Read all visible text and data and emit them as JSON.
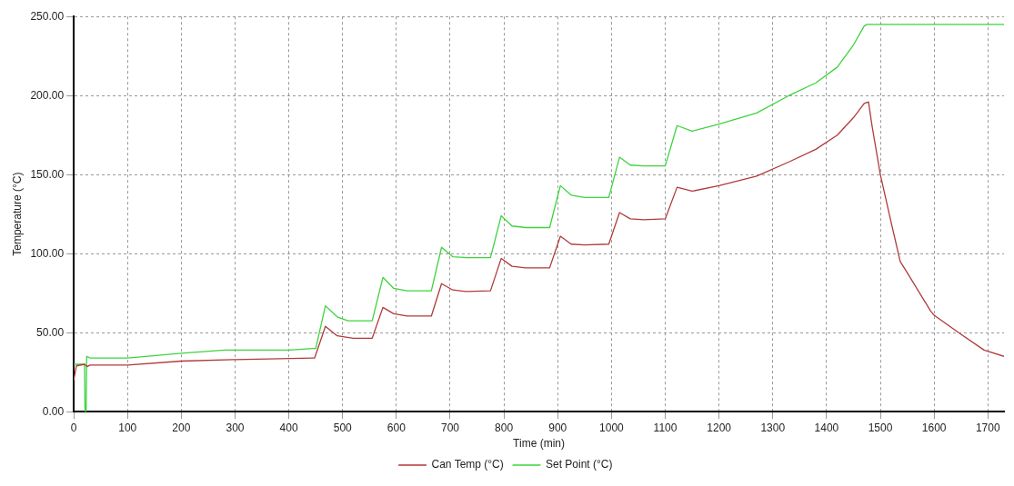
{
  "chart_data": {
    "type": "line",
    "xlabel": "Time (min)",
    "ylabel": "Temperature (°C)",
    "xlim": [
      0,
      1730
    ],
    "xticks": [
      0,
      100,
      200,
      300,
      400,
      500,
      600,
      700,
      800,
      900,
      1000,
      1100,
      1200,
      1300,
      1400,
      1500,
      1600,
      1700
    ],
    "ylim": [
      0,
      250
    ],
    "yticks": [
      {
        "value": 0,
        "label": "0.00"
      },
      {
        "value": 50,
        "label": "50.00"
      },
      {
        "value": 100,
        "label": "100.00"
      },
      {
        "value": 150,
        "label": "150.00"
      },
      {
        "value": 200,
        "label": "200.00"
      },
      {
        "value": 250,
        "label": "250.00"
      }
    ],
    "grid": true,
    "legend": "bottom",
    "marker": "none",
    "line_style": "solid",
    "series": [
      {
        "name": "Can Temp (°C)",
        "color": "#b03a3a",
        "x": [
          0,
          5,
          20,
          25,
          30,
          100,
          200,
          300,
          445,
          448,
          468,
          490,
          520,
          555,
          575,
          595,
          620,
          665,
          684,
          705,
          730,
          775,
          795,
          815,
          840,
          885,
          905,
          925,
          950,
          995,
          1015,
          1035,
          1060,
          1100,
          1122,
          1150,
          1200,
          1270,
          1330,
          1380,
          1420,
          1450,
          1470,
          1478,
          1485,
          1500,
          1520,
          1537,
          1550,
          1593,
          1600,
          1650,
          1693,
          1730
        ],
        "values": [
          20,
          29,
          30,
          28.5,
          29.5,
          29.5,
          32,
          33,
          34,
          34,
          54,
          48,
          46.5,
          46.5,
          66,
          62,
          60.5,
          60.5,
          81,
          77,
          76,
          76.5,
          97,
          92,
          91,
          91,
          111,
          106,
          105.5,
          106,
          126,
          122,
          121.5,
          122,
          142,
          139.5,
          143,
          149,
          158,
          166,
          175,
          186,
          195,
          196,
          180,
          150,
          120,
          95,
          88,
          64,
          61,
          49,
          39,
          35
        ]
      },
      {
        "name": "Set Point (°C)",
        "color": "#3ed33e",
        "x": [
          0,
          20,
          21,
          23,
          24,
          30,
          100,
          200,
          280,
          400,
          445,
          450,
          468,
          490,
          510,
          555,
          575,
          595,
          620,
          665,
          684,
          705,
          730,
          775,
          795,
          815,
          840,
          885,
          905,
          925,
          950,
          995,
          1015,
          1035,
          1060,
          1100,
          1122,
          1150,
          1200,
          1270,
          1330,
          1380,
          1420,
          1450,
          1470,
          1475,
          1730
        ],
        "values": [
          30,
          30,
          0,
          0,
          35,
          34,
          34,
          37,
          39,
          39,
          40,
          40,
          67,
          60,
          57.5,
          57.5,
          85,
          78,
          76.5,
          76.5,
          104,
          98,
          97.5,
          97.5,
          124,
          117.5,
          116.5,
          116.5,
          143,
          137,
          135.5,
          135.5,
          161,
          156,
          155.5,
          155.5,
          181,
          177.5,
          182,
          189,
          200,
          208,
          218,
          232,
          244,
          245,
          245
        ]
      }
    ]
  }
}
